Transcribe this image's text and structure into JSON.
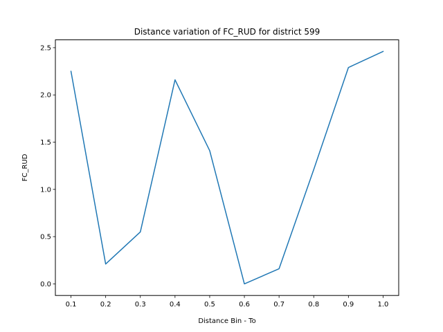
{
  "chart_data": {
    "type": "line",
    "title": "Distance variation of FC_RUD for district 599",
    "xlabel": "Distance Bin - To",
    "ylabel": "FC_RUD",
    "xlim": [
      0.055,
      1.045
    ],
    "ylim": [
      -0.123,
      2.583
    ],
    "xticks": [
      0.1,
      0.2,
      0.3,
      0.4,
      0.5,
      0.6,
      0.7,
      0.8,
      0.9,
      1.0
    ],
    "xtick_labels": [
      "0.1",
      "0.2",
      "0.3",
      "0.4",
      "0.5",
      "0.6",
      "0.7",
      "0.8",
      "0.9",
      "1.0"
    ],
    "yticks": [
      0.0,
      0.5,
      1.0,
      1.5,
      2.0,
      2.5
    ],
    "ytick_labels": [
      "0.0",
      "0.5",
      "1.0",
      "1.5",
      "2.0",
      "2.5"
    ],
    "grid": false,
    "legend": "none",
    "series": [
      {
        "color": "#1f77b4",
        "x": [
          0.1,
          0.2,
          0.3,
          0.4,
          0.5,
          0.6,
          0.7,
          0.8,
          0.9,
          1.0
        ],
        "y": [
          2.25,
          0.21,
          0.55,
          2.16,
          1.41,
          0.0,
          0.16,
          1.21,
          2.29,
          2.46
        ]
      }
    ]
  }
}
